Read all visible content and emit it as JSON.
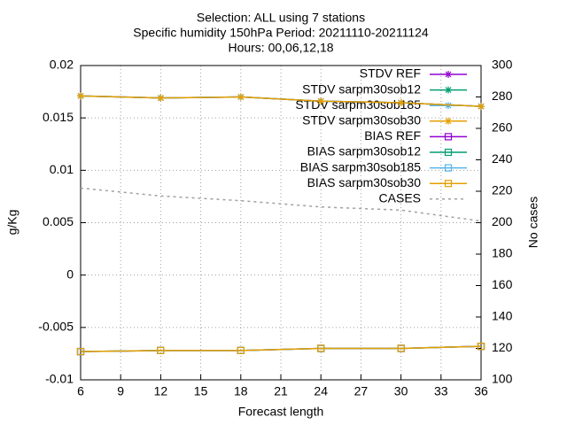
{
  "chart_data": {
    "type": "line",
    "title": [
      "Selection: ALL using     7 stations",
      "Specific humidity 150hPa   Period: 20211110-20211124",
      "Hours: 00,06,12,18"
    ],
    "xlabel": "Forecast length",
    "ylabel": "g/Kg",
    "y2label": "No cases",
    "x": [
      6,
      12,
      18,
      24,
      30,
      36
    ],
    "xlim": [
      6,
      36
    ],
    "xticks": [
      6,
      9,
      12,
      15,
      18,
      21,
      24,
      27,
      30,
      33,
      36
    ],
    "ylim": [
      -0.01,
      0.02
    ],
    "yticks": [
      -0.01,
      -0.005,
      0,
      0.005,
      0.01,
      0.015,
      0.02
    ],
    "y2lim": [
      100,
      300
    ],
    "y2ticks": [
      100,
      120,
      140,
      160,
      180,
      200,
      220,
      240,
      260,
      280,
      300
    ],
    "grid": true,
    "legend": "top-right",
    "series": [
      {
        "name": "STDV REF",
        "color": "#9400d3",
        "marker": "star",
        "values": [
          0.0171,
          0.0169,
          0.017,
          0.0166,
          0.01645,
          0.0161
        ]
      },
      {
        "name": "STDV sarpm30sob12",
        "color": "#009e73",
        "marker": "star",
        "values": [
          0.0171,
          0.0169,
          0.017,
          0.0166,
          0.01645,
          0.0161
        ]
      },
      {
        "name": "STDV sarpm30sob185",
        "color": "#56b4e9",
        "marker": "star",
        "values": [
          0.0171,
          0.0169,
          0.017,
          0.0166,
          0.01645,
          0.0161
        ]
      },
      {
        "name": "STDV sarpm30sob30",
        "color": "#e69f00",
        "marker": "star",
        "values": [
          0.0171,
          0.0169,
          0.017,
          0.0166,
          0.01645,
          0.0161
        ]
      },
      {
        "name": "BIAS REF",
        "color": "#9400d3",
        "marker": "square",
        "values": [
          -0.0073,
          -0.0072,
          -0.0072,
          -0.007,
          -0.007,
          -0.0068
        ]
      },
      {
        "name": "BIAS sarpm30sob12",
        "color": "#009e73",
        "marker": "square",
        "values": [
          -0.0073,
          -0.0072,
          -0.0072,
          -0.007,
          -0.007,
          -0.0068
        ]
      },
      {
        "name": "BIAS sarpm30sob185",
        "color": "#56b4e9",
        "marker": "square",
        "values": [
          -0.0073,
          -0.0072,
          -0.0072,
          -0.007,
          -0.007,
          -0.0068
        ]
      },
      {
        "name": "BIAS sarpm30sob30",
        "color": "#e69f00",
        "marker": "square",
        "values": [
          -0.0073,
          -0.0072,
          -0.0072,
          -0.007,
          -0.007,
          -0.0068
        ]
      },
      {
        "name": "CASES",
        "color": "#a0a0a0",
        "marker": "none",
        "dashed": true,
        "axis": "y2",
        "values": [
          222,
          217,
          214,
          210,
          208,
          201
        ]
      }
    ]
  }
}
